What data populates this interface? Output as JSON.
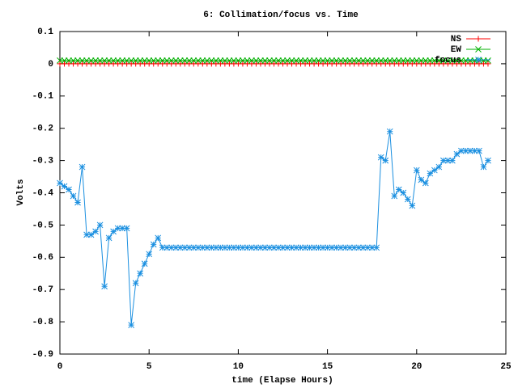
{
  "chart_data": {
    "type": "line",
    "title": "6: Collimation/focus vs. Time",
    "x_label": "time (Elapse Hours)",
    "y_label": "Volts",
    "x": [
      0,
      0.25,
      0.5,
      0.75,
      1,
      1.25,
      1.5,
      1.75,
      2,
      2.25,
      2.5,
      2.75,
      3,
      3.25,
      3.5,
      3.75,
      4,
      4.25,
      4.5,
      4.75,
      5,
      5.25,
      5.5,
      5.75,
      6,
      6.25,
      6.5,
      6.75,
      7,
      7.25,
      7.5,
      7.75,
      8,
      8.25,
      8.5,
      8.75,
      9,
      9.25,
      9.5,
      9.75,
      10,
      10.25,
      10.5,
      10.75,
      11,
      11.25,
      11.5,
      11.75,
      12,
      12.25,
      12.5,
      12.75,
      13,
      13.25,
      13.5,
      13.75,
      14,
      14.25,
      14.5,
      14.75,
      15,
      15.25,
      15.5,
      15.75,
      16,
      16.25,
      16.5,
      16.75,
      17,
      17.25,
      17.5,
      17.75,
      18,
      18.25,
      18.5,
      18.75,
      19,
      19.25,
      19.5,
      19.75,
      20,
      20.25,
      20.5,
      20.75,
      21,
      21.25,
      21.5,
      21.75,
      22,
      22.25,
      22.5,
      22.75,
      23,
      23.25,
      23.5,
      23.75,
      24
    ],
    "series": [
      {
        "name": "NS",
        "color": "#ff0000",
        "marker": "plus",
        "values": [
          0,
          0,
          0,
          0,
          0,
          0,
          0,
          0,
          0,
          0,
          0,
          0,
          0,
          0,
          0,
          0,
          0,
          0,
          0,
          0,
          0,
          0,
          0,
          0,
          0,
          0,
          0,
          0,
          0,
          0,
          0,
          0,
          0,
          0,
          0,
          0,
          0,
          0,
          0,
          0,
          0,
          0,
          0,
          0,
          0,
          0,
          0,
          0,
          0,
          0,
          0,
          0,
          0,
          0,
          0,
          0,
          0,
          0,
          0,
          0,
          0,
          0,
          0,
          0,
          0,
          0,
          0,
          0,
          0,
          0,
          0,
          0,
          0,
          0,
          0,
          0,
          0,
          0,
          0,
          0,
          0,
          0,
          0,
          0,
          0,
          0,
          0,
          0,
          0,
          0,
          0,
          0,
          0,
          0,
          0,
          0,
          0
        ]
      },
      {
        "name": "EW",
        "color": "#00b000",
        "marker": "cross",
        "values": [
          0.01,
          0.01,
          0.01,
          0.01,
          0.01,
          0.01,
          0.01,
          0.01,
          0.01,
          0.01,
          0.01,
          0.01,
          0.01,
          0.01,
          0.01,
          0.01,
          0.01,
          0.01,
          0.01,
          0.01,
          0.01,
          0.01,
          0.01,
          0.01,
          0.01,
          0.01,
          0.01,
          0.01,
          0.01,
          0.01,
          0.01,
          0.01,
          0.01,
          0.01,
          0.01,
          0.01,
          0.01,
          0.01,
          0.01,
          0.01,
          0.01,
          0.01,
          0.01,
          0.01,
          0.01,
          0.01,
          0.01,
          0.01,
          0.01,
          0.01,
          0.01,
          0.01,
          0.01,
          0.01,
          0.01,
          0.01,
          0.01,
          0.01,
          0.01,
          0.01,
          0.01,
          0.01,
          0.01,
          0.01,
          0.01,
          0.01,
          0.01,
          0.01,
          0.01,
          0.01,
          0.01,
          0.01,
          0.01,
          0.01,
          0.01,
          0.01,
          0.01,
          0.01,
          0.01,
          0.01,
          0.01,
          0.01,
          0.01,
          0.01,
          0.01,
          0.01,
          0.01,
          0.01,
          0.01,
          0.01,
          0.01,
          0.01,
          0.01,
          0.01,
          0.01,
          0.01,
          0.01
        ]
      },
      {
        "name": "focus",
        "color": "#1a8fe0",
        "marker": "star",
        "values": [
          -0.37,
          -0.38,
          -0.39,
          -0.41,
          -0.43,
          -0.32,
          -0.53,
          -0.53,
          -0.52,
          -0.5,
          -0.69,
          -0.54,
          -0.52,
          -0.51,
          -0.51,
          -0.51,
          -0.81,
          -0.68,
          -0.65,
          -0.62,
          -0.59,
          -0.56,
          -0.54,
          -0.57,
          -0.57,
          -0.57,
          -0.57,
          -0.57,
          -0.57,
          -0.57,
          -0.57,
          -0.57,
          -0.57,
          -0.57,
          -0.57,
          -0.57,
          -0.57,
          -0.57,
          -0.57,
          -0.57,
          -0.57,
          -0.57,
          -0.57,
          -0.57,
          -0.57,
          -0.57,
          -0.57,
          -0.57,
          -0.57,
          -0.57,
          -0.57,
          -0.57,
          -0.57,
          -0.57,
          -0.57,
          -0.57,
          -0.57,
          -0.57,
          -0.57,
          -0.57,
          -0.57,
          -0.57,
          -0.57,
          -0.57,
          -0.57,
          -0.57,
          -0.57,
          -0.57,
          -0.57,
          -0.57,
          -0.57,
          -0.57,
          -0.29,
          -0.3,
          -0.21,
          -0.41,
          -0.39,
          -0.4,
          -0.42,
          -0.44,
          -0.33,
          -0.36,
          -0.37,
          -0.34,
          -0.33,
          -0.32,
          -0.3,
          -0.3,
          -0.3,
          -0.28,
          -0.27,
          -0.27,
          -0.27,
          -0.27,
          -0.27,
          -0.32,
          -0.3
        ]
      }
    ],
    "xlim": [
      0,
      25
    ],
    "xticks": [
      0,
      5,
      10,
      15,
      20,
      25
    ],
    "ylim": [
      -0.9,
      0.1
    ],
    "yticks": [
      0.1,
      0,
      -0.1,
      -0.2,
      -0.3,
      -0.4,
      -0.5,
      -0.6,
      -0.7,
      -0.8,
      -0.9
    ],
    "legend": "top-right"
  }
}
